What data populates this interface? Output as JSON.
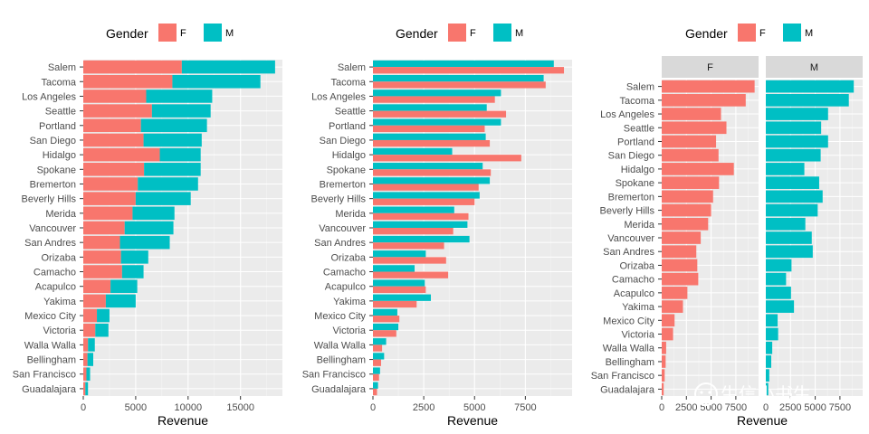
{
  "chart_data": [
    {
      "type": "bar",
      "variant": "stacked-horizontal",
      "legend": {
        "title": "Gender",
        "position": "top"
      },
      "categories": [
        "Salem",
        "Tacoma",
        "Los Angeles",
        "Seattle",
        "Portland",
        "San Diego",
        "Hidalgo",
        "Spokane",
        "Bremerton",
        "Beverly Hills",
        "Merida",
        "Vancouver",
        "San Andres",
        "Orizaba",
        "Camacho",
        "Acapulco",
        "Yakima",
        "Mexico City",
        "Victoria",
        "Walla Walla",
        "Bellingham",
        "San Francisco",
        "Guadalajara"
      ],
      "series": [
        {
          "name": "F",
          "color": "#F8766D",
          "values": [
            9400,
            8500,
            6000,
            6550,
            5500,
            5750,
            7300,
            5800,
            5200,
            5000,
            4700,
            3950,
            3500,
            3600,
            3700,
            2600,
            2150,
            1300,
            1150,
            450,
            400,
            300,
            200
          ]
        },
        {
          "name": "M",
          "color": "#00BFC4",
          "values": [
            8900,
            8400,
            6300,
            5600,
            6300,
            5550,
            3900,
            5400,
            5750,
            5250,
            4000,
            4650,
            4750,
            2600,
            2050,
            2550,
            2850,
            1200,
            1250,
            650,
            550,
            350,
            250
          ]
        }
      ],
      "xlabel": "Revenue",
      "xlim": [
        0,
        19000
      ],
      "xticks": [
        0,
        5000,
        10000,
        15000
      ],
      "xtick_labels": [
        "0",
        "5000",
        "10000",
        "15000"
      ],
      "grid": true
    },
    {
      "type": "bar",
      "variant": "dodged-horizontal",
      "legend": {
        "title": "Gender",
        "position": "top"
      },
      "categories": [
        "Salem",
        "Tacoma",
        "Los Angeles",
        "Seattle",
        "Portland",
        "San Diego",
        "Hidalgo",
        "Spokane",
        "Bremerton",
        "Beverly Hills",
        "Merida",
        "Vancouver",
        "San Andres",
        "Orizaba",
        "Camacho",
        "Acapulco",
        "Yakima",
        "Mexico City",
        "Victoria",
        "Walla Walla",
        "Bellingham",
        "San Francisco",
        "Guadalajara"
      ],
      "series": [
        {
          "name": "F",
          "color": "#F8766D",
          "values": [
            9400,
            8500,
            6000,
            6550,
            5500,
            5750,
            7300,
            5800,
            5200,
            5000,
            4700,
            3950,
            3500,
            3600,
            3700,
            2600,
            2150,
            1300,
            1150,
            450,
            400,
            300,
            200
          ]
        },
        {
          "name": "M",
          "color": "#00BFC4",
          "values": [
            8900,
            8400,
            6300,
            5600,
            6300,
            5550,
            3900,
            5400,
            5750,
            5250,
            4000,
            4650,
            4750,
            2600,
            2050,
            2550,
            2850,
            1200,
            1250,
            650,
            550,
            350,
            250
          ]
        }
      ],
      "xlabel": "Revenue",
      "xlim": [
        0,
        9800
      ],
      "xticks": [
        0,
        2500,
        5000,
        7500
      ],
      "xtick_labels": [
        "0",
        "2500",
        "5000",
        "7500"
      ],
      "grid": true
    },
    {
      "type": "bar",
      "variant": "faceted-horizontal",
      "legend": {
        "title": "Gender",
        "position": "top"
      },
      "facets": [
        "F",
        "M"
      ],
      "categories": [
        "Salem",
        "Tacoma",
        "Los Angeles",
        "Seattle",
        "Portland",
        "San Diego",
        "Hidalgo",
        "Spokane",
        "Bremerton",
        "Beverly Hills",
        "Merida",
        "Vancouver",
        "San Andres",
        "Orizaba",
        "Camacho",
        "Acapulco",
        "Yakima",
        "Mexico City",
        "Victoria",
        "Walla Walla",
        "Bellingham",
        "San Francisco",
        "Guadalajara"
      ],
      "series": [
        {
          "name": "F",
          "color": "#F8766D",
          "values": [
            9400,
            8500,
            6000,
            6550,
            5500,
            5750,
            7300,
            5800,
            5200,
            5000,
            4700,
            3950,
            3500,
            3600,
            3700,
            2600,
            2150,
            1300,
            1150,
            450,
            400,
            300,
            200
          ]
        },
        {
          "name": "M",
          "color": "#00BFC4",
          "values": [
            8900,
            8400,
            6300,
            5600,
            6300,
            5550,
            3900,
            5400,
            5750,
            5250,
            4000,
            4650,
            4750,
            2600,
            2050,
            2550,
            2850,
            1200,
            1250,
            650,
            550,
            350,
            250
          ]
        }
      ],
      "xlabel": "Revenue",
      "xlim": [
        0,
        9800
      ],
      "xticks": [
        0,
        2500,
        5000,
        7500
      ],
      "xtick_labels": [
        "0",
        "2500",
        "5000",
        "7500"
      ],
      "grid": true
    }
  ],
  "watermark": "生信小书生"
}
